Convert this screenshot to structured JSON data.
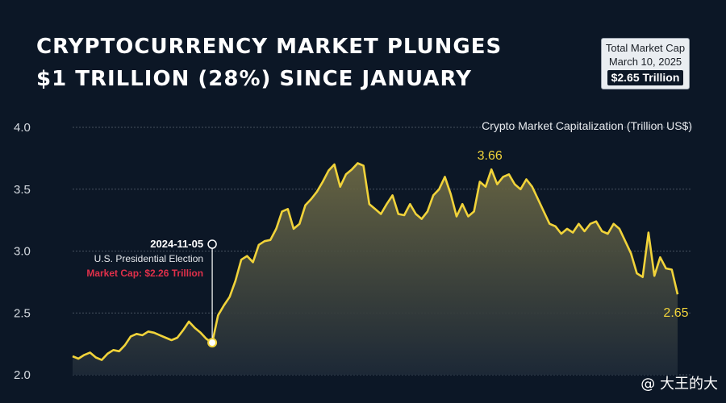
{
  "title": {
    "line1": "CRYPTOCURRENCY MARKET PLUNGES",
    "line2": "$1 TRILLION (28%) SINCE JANUARY"
  },
  "cap_box": {
    "label": "Total Market Cap",
    "date": "March 10, 2025",
    "value": "$2.65 Trillion"
  },
  "watermark": "@ 大王的大",
  "colors": {
    "background": "#0c1726",
    "line": "#f1d33a",
    "fill_top": "#6f6b45",
    "fill_bottom": "#1e2a38",
    "grid": "#5a6572",
    "highlight": "#e0304a"
  },
  "chart_data": {
    "type": "area",
    "ylabel": "Crypto Market Capitalization (Trillion US$)",
    "ylim": [
      2.0,
      4.0
    ],
    "yticks": [
      "2.0",
      "2.5",
      "3.0",
      "3.5",
      "4.0"
    ],
    "grid": true,
    "series": [
      {
        "values": [
          2.15,
          2.13,
          2.16,
          2.18,
          2.14,
          2.12,
          2.17,
          2.2,
          2.19,
          2.24,
          2.31,
          2.33,
          2.32,
          2.35,
          2.34,
          2.32,
          2.3,
          2.28,
          2.3,
          2.36,
          2.43,
          2.38,
          2.34,
          2.29,
          2.26,
          2.48,
          2.56,
          2.63,
          2.76,
          2.93,
          2.96,
          2.91,
          3.05,
          3.08,
          3.09,
          3.18,
          3.32,
          3.34,
          3.18,
          3.22,
          3.37,
          3.42,
          3.48,
          3.56,
          3.65,
          3.7,
          3.52,
          3.62,
          3.66,
          3.71,
          3.69,
          3.38,
          3.34,
          3.3,
          3.38,
          3.45,
          3.3,
          3.29,
          3.38,
          3.3,
          3.26,
          3.32,
          3.45,
          3.5,
          3.6,
          3.46,
          3.28,
          3.38,
          3.28,
          3.32,
          3.56,
          3.52,
          3.66,
          3.54,
          3.6,
          3.62,
          3.54,
          3.5,
          3.58,
          3.52,
          3.42,
          3.32,
          3.22,
          3.2,
          3.14,
          3.18,
          3.15,
          3.22,
          3.16,
          3.22,
          3.24,
          3.16,
          3.14,
          3.22,
          3.18,
          3.08,
          2.98,
          2.82,
          2.79,
          3.15,
          2.8,
          2.95,
          2.86,
          2.85,
          2.65
        ]
      }
    ],
    "annotations": {
      "election": {
        "date": "2024-11-05",
        "label": "U.S. Presidential Election",
        "cap_text": "Market Cap: $2.26 Trillion",
        "index": 24,
        "value": 2.26
      },
      "peak_label": "3.66",
      "peak_index": 72,
      "end_label": "2.65",
      "end_index": 104
    }
  }
}
